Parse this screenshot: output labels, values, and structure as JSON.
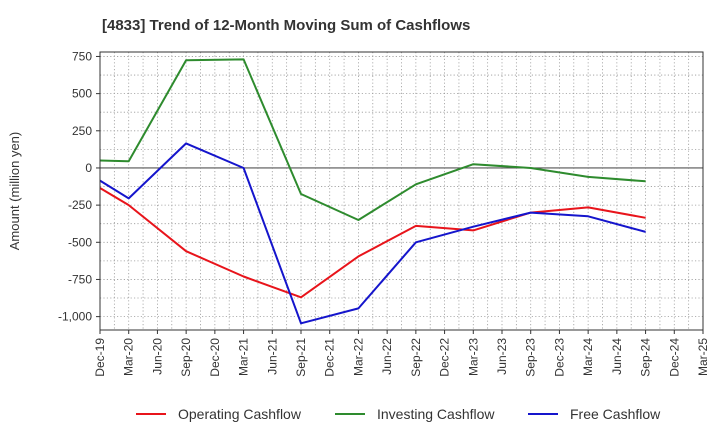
{
  "chart_data": {
    "type": "line",
    "title": "[4833]  Trend of 12-Month Moving Sum of Cashflows",
    "ylabel": "Amount (million yen)",
    "xlabel": "",
    "x": [
      "Dec-19",
      "Mar-20",
      "Jun-20",
      "Sep-20",
      "Dec-20",
      "Mar-21",
      "Jun-21",
      "Sep-21",
      "Dec-21",
      "Mar-22",
      "Jun-22",
      "Sep-22",
      "Dec-22",
      "Mar-23",
      "Jun-23",
      "Sep-23",
      "Dec-23",
      "Mar-24",
      "Jun-24",
      "Sep-24",
      "Dec-24",
      "Mar-25"
    ],
    "yticks": [
      750,
      500,
      250,
      0,
      -250,
      -500,
      -750,
      -1000
    ],
    "ytick_labels": [
      "750",
      "500",
      "250",
      "0",
      "-250",
      "-500",
      "-750",
      "-1,000"
    ],
    "ylim": [
      -1090,
      780
    ],
    "grid": true,
    "legend_position": "bottom",
    "series": [
      {
        "name": "Operating Cashflow",
        "color": "#e8141b",
        "values": [
          -135,
          -250,
          null,
          -560,
          null,
          -730,
          null,
          -870,
          null,
          -595,
          null,
          -390,
          null,
          -420,
          null,
          -300,
          null,
          -265,
          null,
          -335,
          null,
          null
        ]
      },
      {
        "name": "Investing Cashflow",
        "color": "#2e8b2e",
        "values": [
          50,
          45,
          null,
          725,
          null,
          730,
          null,
          -175,
          null,
          -350,
          null,
          -110,
          null,
          25,
          null,
          0,
          null,
          -60,
          null,
          -90,
          null,
          null
        ]
      },
      {
        "name": "Free Cashflow",
        "color": "#1515cc",
        "values": [
          -85,
          -205,
          null,
          165,
          null,
          0,
          null,
          -1045,
          null,
          -945,
          null,
          -500,
          null,
          -395,
          null,
          -300,
          null,
          -325,
          null,
          -430,
          null,
          null
        ]
      }
    ]
  }
}
